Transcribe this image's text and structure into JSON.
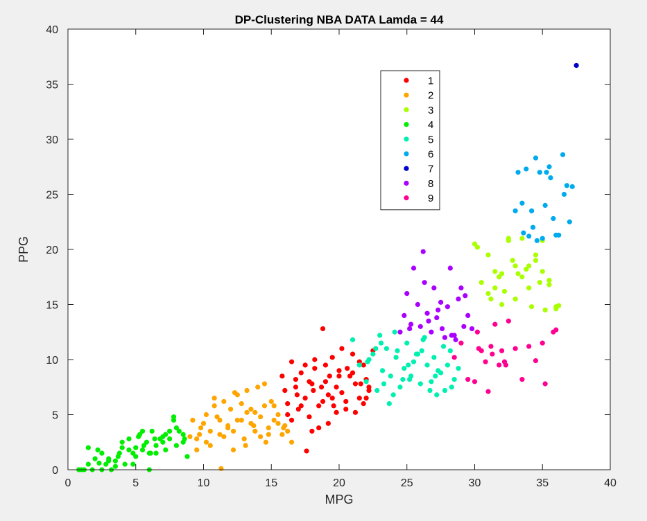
{
  "chart_data": {
    "type": "scatter",
    "title": "DP-Clustering NBA DATA Lamda = 44",
    "xlabel": "MPG",
    "ylabel": "PPG",
    "xlim": [
      0,
      40
    ],
    "ylim": [
      0,
      40
    ],
    "xticks": [
      0,
      5,
      10,
      15,
      20,
      25,
      30,
      35,
      40
    ],
    "yticks": [
      0,
      5,
      10,
      15,
      20,
      25,
      30,
      35,
      40
    ],
    "legend_position": "top-center",
    "series": [
      {
        "name": "1",
        "color": "#ff0000",
        "x": [
          15.8,
          16,
          16.2,
          16.5,
          16.8,
          17,
          17.2,
          17.5,
          17.8,
          18,
          18.2,
          18.5,
          18.8,
          19,
          19.2,
          19.5,
          19.8,
          20,
          20.2,
          20.5,
          20.8,
          21,
          21.2,
          21.5,
          21.8,
          22,
          22.2,
          22.5,
          16.2,
          16.8,
          17.5,
          18,
          18.8,
          19.2,
          19.8,
          20.5,
          21,
          21.8,
          22.2,
          16.5,
          17.2,
          18.2,
          19,
          19.5,
          20.2,
          21.2,
          22,
          17.8,
          18.5,
          20,
          21.5,
          17.6,
          18.7,
          19.6,
          20.6,
          21.6,
          16.9,
          18.1,
          19.3
        ],
        "y": [
          8.5,
          7.2,
          6,
          9.8,
          7.5,
          5.5,
          8.8,
          6.5,
          4.8,
          7.8,
          9.2,
          5.8,
          12.8,
          8,
          6.8,
          10.2,
          5.2,
          9,
          7,
          6.2,
          8.5,
          10.5,
          7.8,
          6.5,
          9.5,
          8.2,
          7.5,
          10.8,
          5,
          8.2,
          9.5,
          3.5,
          6.2,
          4.2,
          7.5,
          5.5,
          8.8,
          6,
          7.2,
          4.5,
          5.8,
          10,
          9.5,
          6.5,
          11,
          5.2,
          6.5,
          8,
          3.8,
          8.5,
          9.8,
          1.7,
          7.5,
          5.8,
          9.2,
          7.8,
          6.8,
          7.2,
          8.5
        ]
      },
      {
        "name": "2",
        "color": "#ffa500",
        "x": [
          9,
          9.2,
          9.5,
          9.8,
          10,
          10.2,
          10.5,
          10.8,
          11,
          11.2,
          11.5,
          11.8,
          12,
          12.2,
          12.5,
          12.8,
          13,
          13.2,
          13.5,
          13.8,
          14,
          14.2,
          14.5,
          14.8,
          15,
          15.2,
          15.5,
          15.8,
          16,
          16.2,
          16.5,
          9.5,
          10.5,
          11.5,
          12.5,
          13.5,
          14.5,
          15.5,
          10.2,
          11.2,
          12.2,
          13.2,
          14.2,
          15.2,
          10.8,
          11.8,
          12.8,
          13.8,
          14.8,
          11.3,
          13.1,
          14.6,
          15.9,
          9.7,
          12.3,
          13.7
        ],
        "y": [
          3,
          4.5,
          2.8,
          3.8,
          4.2,
          2.5,
          3.5,
          5.8,
          4.8,
          3.2,
          6.2,
          4,
          5.5,
          3.5,
          4.5,
          6,
          2.8,
          5.2,
          4.2,
          3.5,
          7.5,
          4.8,
          5.8,
          3.8,
          6.2,
          4.5,
          5,
          3.2,
          4,
          3.5,
          2.5,
          1.8,
          2.2,
          3,
          6.8,
          5.5,
          7.8,
          4.2,
          5,
          4.5,
          1.8,
          7.2,
          3,
          5.8,
          6.5,
          3.8,
          4.5,
          5.2,
          3.2,
          0.1,
          2.2,
          2.5,
          3.8,
          3.2,
          7,
          4
        ],
        "overflow_visible_count": 0
      },
      {
        "name": "3",
        "color": "#aaff00",
        "x": [
          30,
          30.5,
          31,
          31.2,
          31.5,
          31.8,
          32,
          32.2,
          32.5,
          32.8,
          33,
          33.2,
          33.5,
          33.8,
          34,
          34.2,
          34.5,
          34.8,
          35,
          35.2,
          35.5,
          36,
          36.2,
          30.2,
          31.5,
          32.5,
          33.5,
          34.5,
          35.5,
          31,
          32,
          33,
          34,
          35,
          36
        ],
        "y": [
          20.5,
          17,
          19.5,
          15.5,
          18,
          17.5,
          15,
          16.2,
          20.8,
          19,
          18.5,
          17.8,
          21,
          18.2,
          16.5,
          14.8,
          19.5,
          17,
          18,
          14.5,
          16.8,
          14.8,
          14.9,
          20.2,
          16.5,
          21,
          17.5,
          19,
          17.2,
          16,
          17.8,
          15.5,
          18.5,
          20.8,
          14.6
        ]
      },
      {
        "name": "4",
        "color": "#00ee00",
        "x": [
          0.8,
          1,
          1.2,
          1.5,
          1.8,
          2,
          2.2,
          2.5,
          2.8,
          3,
          3.2,
          3.5,
          3.8,
          4,
          4.2,
          4.5,
          4.8,
          5,
          5.2,
          5.5,
          5.8,
          6,
          6.2,
          6.5,
          6.8,
          7,
          7.2,
          7.5,
          7.8,
          8,
          8.2,
          8.5,
          8.8,
          1.5,
          2.5,
          3.5,
          4.5,
          5.5,
          6.5,
          7.5,
          8.5,
          3,
          4,
          5,
          6,
          7,
          8,
          4.8,
          5.6,
          6.4,
          7.2,
          8.6,
          5.3,
          6.1,
          7.8,
          2.3,
          3.7
        ],
        "y": [
          0,
          0,
          0,
          0.5,
          0,
          1,
          1.8,
          0,
          0.5,
          1,
          0,
          0.8,
          1.5,
          2,
          0.5,
          2.8,
          1.5,
          2,
          3,
          1.8,
          2.5,
          0,
          3.5,
          2.2,
          2.8,
          3,
          1.8,
          3.5,
          4.8,
          2.2,
          3.5,
          2.5,
          1.2,
          2,
          1.5,
          0.3,
          1.8,
          3.5,
          1.5,
          2.8,
          3.2,
          0.8,
          2.5,
          1.2,
          1.5,
          2.5,
          3.8,
          0.5,
          2.2,
          2.8,
          3.2,
          2.8,
          3.2,
          1.5,
          4.5,
          0.6,
          1.2
        ]
      },
      {
        "name": "5",
        "color": "#00f0b0",
        "x": [
          21,
          21.5,
          22,
          22.5,
          22.8,
          23,
          23.2,
          23.5,
          23.8,
          24,
          24.2,
          24.5,
          24.8,
          25,
          25.2,
          25.5,
          25.8,
          26,
          26.2,
          26.5,
          26.8,
          27,
          27.2,
          27.5,
          27.8,
          28,
          28.2,
          28.5,
          28.8,
          22.2,
          23.3,
          24.3,
          25.3,
          26.3,
          27.3,
          28.3,
          22.7,
          23.7,
          24.7,
          25.7,
          26.7,
          27.7,
          25.1,
          26.1,
          27.1,
          24.1,
          23.1,
          22.1
        ],
        "y": [
          11.8,
          9.5,
          8,
          10.5,
          7.2,
          12.2,
          9,
          11,
          8.5,
          6.8,
          10.2,
          7.5,
          9.2,
          11.5,
          8.2,
          9.8,
          10.5,
          7.8,
          11.8,
          9.5,
          8,
          10.2,
          6.8,
          8.8,
          7.2,
          9.5,
          10.8,
          8.2,
          9.2,
          10,
          7.8,
          10.8,
          8.5,
          12,
          9,
          7.5,
          11,
          6,
          8.2,
          10.5,
          7.2,
          11.2,
          9.5,
          10.8,
          8.5,
          12.5,
          11.5,
          9.8
        ]
      },
      {
        "name": "6",
        "color": "#00aaee",
        "x": [
          33,
          33.2,
          33.5,
          33.8,
          34,
          34.2,
          34.5,
          34.8,
          35,
          35.2,
          35.5,
          35.8,
          36,
          36.2,
          36.5,
          36.8,
          37,
          37.2,
          33.6,
          34.6,
          35.6,
          36.6,
          34.3,
          35.3
        ],
        "y": [
          23.5,
          27,
          24.2,
          27.3,
          21.2,
          23.5,
          28.3,
          27,
          21,
          24,
          27.5,
          22.8,
          21.3,
          21.3,
          28.6,
          25.8,
          22.5,
          25.7,
          21.5,
          20.8,
          26.5,
          25,
          22,
          27
        ]
      },
      {
        "name": "7",
        "color": "#0000cc",
        "x": [
          37.5
        ],
        "y": [
          36.7
        ]
      },
      {
        "name": "8",
        "color": "#aa00ff",
        "x": [
          24.5,
          24.8,
          25,
          25.2,
          25.5,
          25.8,
          26,
          26.2,
          26.5,
          26.8,
          27,
          27.2,
          27.5,
          27.8,
          28,
          28.2,
          28.5,
          28.8,
          29,
          29.2,
          29.5,
          29.8,
          25.3,
          26.3,
          27.3,
          28.3,
          29.3,
          26.6,
          27.6,
          28.6
        ],
        "y": [
          12.5,
          14,
          16,
          12.8,
          18.3,
          15,
          13,
          19.8,
          14.2,
          12.5,
          16.5,
          13.8,
          15.2,
          12,
          14.8,
          18.3,
          12.2,
          15.5,
          16.5,
          13,
          14,
          12.8,
          13.2,
          17,
          14.5,
          12.2,
          15.8,
          13.5,
          12.8,
          11.8
        ]
      },
      {
        "name": "9",
        "color": "#ff0090",
        "x": [
          28.5,
          29,
          29.5,
          30,
          30.2,
          30.5,
          30.8,
          31,
          31.2,
          31.5,
          31.8,
          32,
          32.2,
          32.5,
          33,
          33.5,
          34,
          34.5,
          35,
          35.2,
          35.8,
          36,
          30.3,
          31.3,
          32.3
        ],
        "y": [
          10.2,
          11.5,
          8.2,
          8,
          12.5,
          10.8,
          9.8,
          7.1,
          11.2,
          13.2,
          9.5,
          10.8,
          9.8,
          13.5,
          11,
          8.2,
          11.2,
          9.9,
          11.5,
          7.8,
          12.5,
          12.7,
          11,
          10.5,
          9.5
        ]
      }
    ]
  }
}
